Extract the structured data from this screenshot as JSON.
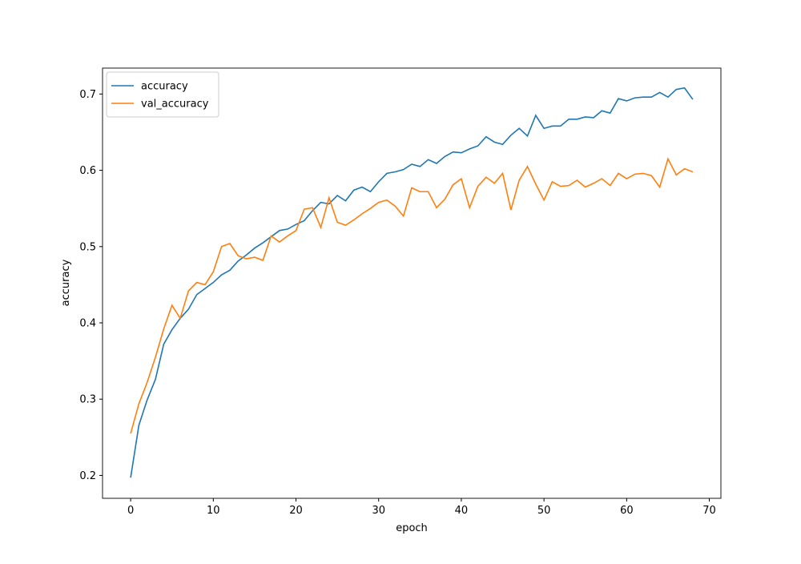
{
  "chart_data": {
    "type": "line",
    "xlabel": "epoch",
    "ylabel": "accuracy",
    "x": [
      0,
      1,
      2,
      3,
      4,
      5,
      6,
      7,
      8,
      9,
      10,
      11,
      12,
      13,
      14,
      15,
      16,
      17,
      18,
      19,
      20,
      21,
      22,
      23,
      24,
      25,
      26,
      27,
      28,
      29,
      30,
      31,
      32,
      33,
      34,
      35,
      36,
      37,
      38,
      39,
      40,
      41,
      42,
      43,
      44,
      45,
      46,
      47,
      48,
      49,
      50,
      51,
      52,
      53,
      54,
      55,
      56,
      57,
      58,
      59,
      60,
      61,
      62,
      63,
      64,
      65,
      66,
      67,
      68
    ],
    "series": [
      {
        "name": "accuracy",
        "color": "#1f77b4",
        "values": [
          0.197,
          0.266,
          0.299,
          0.326,
          0.372,
          0.391,
          0.406,
          0.418,
          0.437,
          0.445,
          0.453,
          0.463,
          0.469,
          0.481,
          0.489,
          0.498,
          0.505,
          0.513,
          0.521,
          0.523,
          0.529,
          0.534,
          0.547,
          0.558,
          0.556,
          0.567,
          0.56,
          0.574,
          0.578,
          0.572,
          0.585,
          0.596,
          0.598,
          0.601,
          0.608,
          0.605,
          0.614,
          0.609,
          0.618,
          0.624,
          0.623,
          0.628,
          0.632,
          0.644,
          0.637,
          0.634,
          0.646,
          0.655,
          0.645,
          0.672,
          0.655,
          0.658,
          0.658,
          0.667,
          0.667,
          0.67,
          0.669,
          0.678,
          0.675,
          0.694,
          0.691,
          0.695,
          0.696,
          0.696,
          0.702,
          0.696,
          0.706,
          0.708,
          0.693
        ]
      },
      {
        "name": "val_accuracy",
        "color": "#ff7f0e",
        "values": [
          0.255,
          0.294,
          0.322,
          0.355,
          0.392,
          0.423,
          0.406,
          0.442,
          0.453,
          0.45,
          0.467,
          0.5,
          0.504,
          0.488,
          0.484,
          0.486,
          0.482,
          0.514,
          0.506,
          0.514,
          0.521,
          0.549,
          0.551,
          0.525,
          0.564,
          0.532,
          0.528,
          0.535,
          0.543,
          0.55,
          0.558,
          0.561,
          0.553,
          0.54,
          0.577,
          0.572,
          0.572,
          0.551,
          0.562,
          0.581,
          0.589,
          0.551,
          0.579,
          0.591,
          0.583,
          0.596,
          0.548,
          0.587,
          0.605,
          0.582,
          0.561,
          0.585,
          0.579,
          0.58,
          0.587,
          0.578,
          0.583,
          0.589,
          0.58,
          0.596,
          0.589,
          0.595,
          0.596,
          0.593,
          0.578,
          0.615,
          0.594,
          0.602,
          0.598
        ]
      }
    ],
    "xlim": [
      -3.4,
      71.4
    ],
    "xticks": [
      0,
      10,
      20,
      30,
      40,
      50,
      60,
      70
    ],
    "ylim": [
      0.17,
      0.734
    ],
    "yticks": [
      0.2,
      0.3,
      0.4,
      0.5,
      0.6,
      0.7
    ],
    "legend": "upper left",
    "grid": false
  }
}
